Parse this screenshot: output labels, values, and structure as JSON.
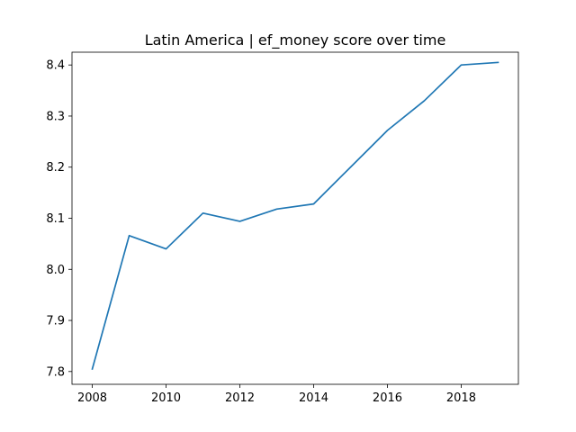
{
  "chart_data": {
    "type": "line",
    "title": "Latin America | ef_money score over time",
    "xlabel": "",
    "ylabel": "",
    "xlim": [
      2007.45,
      2019.55
    ],
    "ylim": [
      7.775,
      8.425
    ],
    "xticks": [
      2008,
      2010,
      2012,
      2014,
      2016,
      2018
    ],
    "xtick_labels": [
      "2008",
      "2010",
      "2012",
      "2014",
      "2016",
      "2018"
    ],
    "yticks": [
      7.8,
      7.9,
      8.0,
      8.1,
      8.2,
      8.3,
      8.4
    ],
    "ytick_labels": [
      "7.8",
      "7.9",
      "8.0",
      "8.1",
      "8.2",
      "8.3",
      "8.4"
    ],
    "grid": false,
    "legend": "none",
    "series": [
      {
        "color": "#1f77b4",
        "x": [
          2008,
          2009,
          2010,
          2011,
          2012,
          2013,
          2014,
          2015,
          2016,
          2017,
          2018,
          2019
        ],
        "y": [
          7.805,
          8.066,
          8.04,
          8.11,
          8.094,
          8.118,
          8.128,
          8.2,
          8.272,
          8.33,
          8.4,
          8.405
        ]
      }
    ]
  }
}
